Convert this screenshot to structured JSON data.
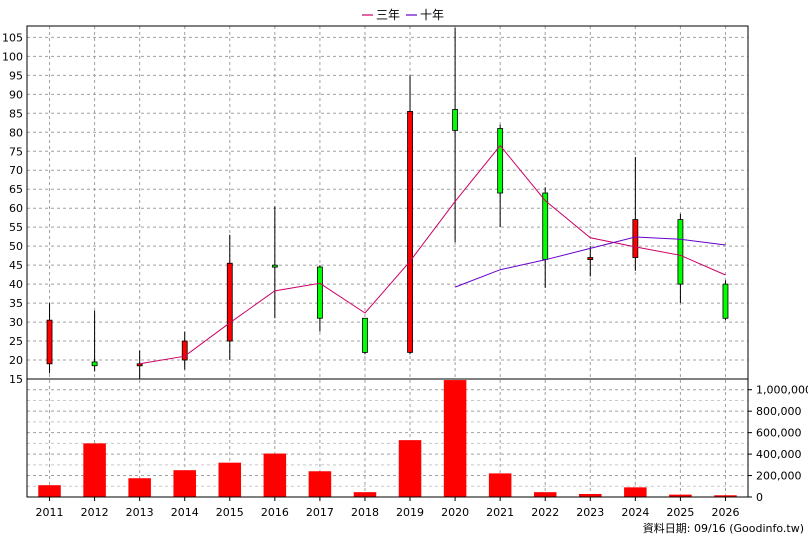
{
  "chart_data": [
    {
      "type": "candlestick",
      "grid": true,
      "legend_position": "top-center",
      "categories": [
        "2011",
        "2012",
        "2013",
        "2014",
        "2015",
        "2016",
        "2017",
        "2018",
        "2019",
        "2020",
        "2021",
        "2022",
        "2023",
        "2024",
        "2025",
        "2026"
      ],
      "ohlc": [
        {
          "x": "2011",
          "open": 19.0,
          "high": 35.0,
          "low": 16.5,
          "close": 30.5
        },
        {
          "x": "2012",
          "open": 19.5,
          "high": 33.0,
          "low": 17.0,
          "close": 18.5
        },
        {
          "x": "2013",
          "open": 19.0,
          "high": 22.5,
          "low": 15.0,
          "close": 19.0
        },
        {
          "x": "2014",
          "open": 20.0,
          "high": 27.5,
          "low": 17.5,
          "close": 25.0
        },
        {
          "x": "2015",
          "open": 25.0,
          "high": 53.0,
          "low": 20.0,
          "close": 45.5
        },
        {
          "x": "2016",
          "open": 45.0,
          "high": 60.5,
          "low": 31.0,
          "close": 44.5
        },
        {
          "x": "2017",
          "open": 44.5,
          "high": 45.0,
          "low": 27.5,
          "close": 31.0
        },
        {
          "x": "2018",
          "open": 31.0,
          "high": 31.0,
          "low": 21.5,
          "close": 22.0
        },
        {
          "x": "2019",
          "open": 22.0,
          "high": 95.0,
          "low": 21.5,
          "close": 85.5
        },
        {
          "x": "2020",
          "open": 86.0,
          "high": 107.5,
          "low": 51.0,
          "close": 80.5
        },
        {
          "x": "2021",
          "open": 81.0,
          "high": 82.0,
          "low": 55.0,
          "close": 64.0
        },
        {
          "x": "2022",
          "open": 64.0,
          "high": 65.5,
          "low": 39.0,
          "close": 46.5
        },
        {
          "x": "2023",
          "open": 46.5,
          "high": 50.0,
          "low": 42.0,
          "close": 47.0
        },
        {
          "x": "2024",
          "open": 47.0,
          "high": 73.5,
          "low": 43.5,
          "close": 57.0
        },
        {
          "x": "2025",
          "open": 57.0,
          "high": 58.5,
          "low": 35.0,
          "close": 40.0
        },
        {
          "x": "2026",
          "open": 40.0,
          "high": 41.0,
          "low": 30.5,
          "close": 31.0
        }
      ],
      "series": [
        {
          "name": "三年",
          "color": "#cc0066",
          "x": [
            "2013",
            "2014",
            "2015",
            "2016",
            "2017",
            "2018",
            "2019",
            "2020",
            "2021",
            "2022",
            "2023",
            "2024",
            "2025",
            "2026"
          ],
          "values": [
            19.0,
            21.0,
            29.8,
            38.2,
            40.2,
            32.4,
            46.0,
            61.8,
            76.5,
            62.0,
            52.2,
            49.8,
            47.6,
            42.4
          ]
        },
        {
          "name": "十年",
          "color": "#6600cc",
          "x": [
            "2020",
            "2021",
            "2022",
            "2023",
            "2024",
            "2025",
            "2026"
          ],
          "values": [
            39.2,
            43.8,
            46.4,
            49.4,
            52.4,
            51.8,
            50.3
          ]
        }
      ],
      "ylim": [
        15,
        108
      ],
      "yticks": [
        "15",
        "20",
        "25",
        "30",
        "35",
        "40",
        "45",
        "50",
        "55",
        "60",
        "65",
        "70",
        "75",
        "80",
        "85",
        "90",
        "95",
        "100",
        "105"
      ],
      "up_color": "#ff0000",
      "down_color": "#00ff00"
    },
    {
      "type": "bar",
      "categories": [
        "2011",
        "2012",
        "2013",
        "2014",
        "2015",
        "2016",
        "2017",
        "2018",
        "2019",
        "2020",
        "2021",
        "2022",
        "2023",
        "2024",
        "2025",
        "2026"
      ],
      "values": [
        110000,
        500000,
        175000,
        250000,
        320000,
        405000,
        240000,
        45000,
        530000,
        1090000,
        220000,
        45000,
        28000,
        90000,
        22000,
        16000
      ],
      "ylim": [
        0,
        1100000
      ],
      "yticks": [
        "0",
        "200,000",
        "400,000",
        "600,000",
        "800,000",
        "1,000,000"
      ],
      "color": "#ff0000"
    }
  ],
  "legend": {
    "items": [
      {
        "label": "三年",
        "color": "#cc0066"
      },
      {
        "label": "十年",
        "color": "#6600cc"
      }
    ]
  },
  "footer": {
    "text": "資料日期: 09/16  (Goodinfo.tw)"
  }
}
